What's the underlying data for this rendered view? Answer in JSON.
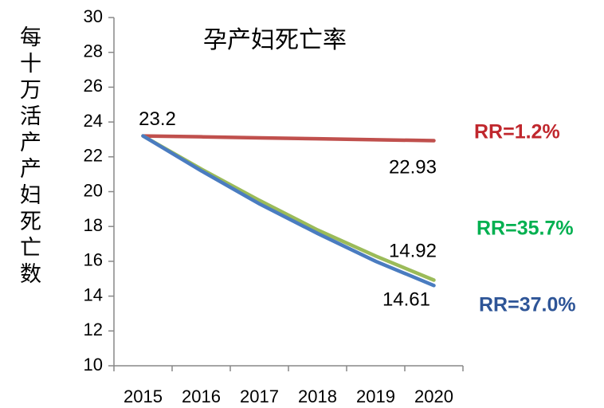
{
  "chart_data": {
    "type": "line",
    "title": "孕产妇死亡率",
    "y_label": "每十万活产产妇死亡数",
    "categories": [
      "2015",
      "2016",
      "2017",
      "2018",
      "2019",
      "2020"
    ],
    "series": [
      {
        "label": "RR=1.2%",
        "color": "#c0504d",
        "label_color": "#c0272d",
        "values": [
          23.2,
          23.15,
          23.09,
          23.04,
          22.98,
          22.93
        ],
        "value_labels": [
          "23.2",
          null,
          null,
          null,
          null,
          "22.93"
        ]
      },
      {
        "label": "RR=35.7%",
        "color": "#9bbb59",
        "label_color": "#00b050",
        "values": [
          23.2,
          21.3,
          19.5,
          17.8,
          16.3,
          14.92
        ],
        "value_labels": [
          null,
          null,
          null,
          null,
          null,
          "14.92"
        ]
      },
      {
        "label": "RR=37.0%",
        "color": "#4a7cc0",
        "label_color": "#2e5597",
        "values": [
          23.2,
          21.2,
          19.3,
          17.6,
          16.0,
          14.61
        ],
        "value_labels": [
          null,
          null,
          null,
          null,
          null,
          "14.61"
        ]
      }
    ],
    "ylim": [
      10,
      30
    ],
    "yticks": [
      10,
      12,
      14,
      16,
      18,
      20,
      22,
      24,
      26,
      28,
      30
    ]
  }
}
